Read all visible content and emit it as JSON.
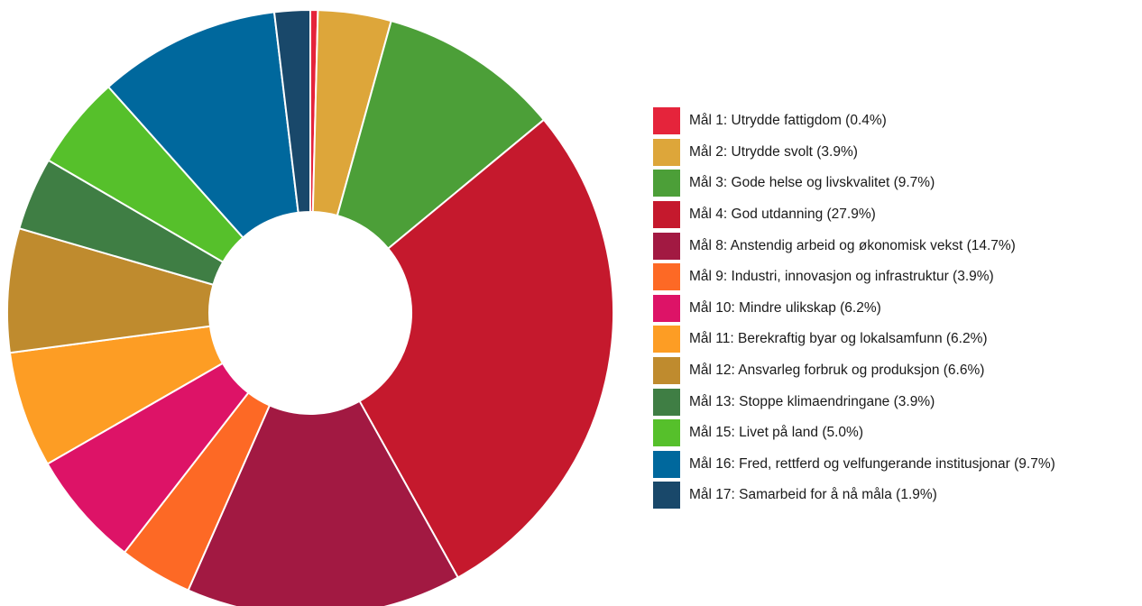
{
  "chart_data": {
    "type": "pie",
    "title": "",
    "legend_position": "right",
    "slices": [
      {
        "label": "Mål 1: Utrydde fattigdom (0.4%)",
        "value": 0.4,
        "color": "#e5243b"
      },
      {
        "label": "Mål 2: Utrydde svolt (3.9%)",
        "value": 3.9,
        "color": "#dda63a"
      },
      {
        "label": "Mål 3: Gode helse og livskvalitet (9.7%)",
        "value": 9.7,
        "color": "#4c9f38"
      },
      {
        "label": "Mål 4: God utdanning (27.9%)",
        "value": 27.9,
        "color": "#c5192d"
      },
      {
        "label": "Mål 8: Anstendig arbeid og økonomisk vekst (14.7%)",
        "value": 14.7,
        "color": "#a21942"
      },
      {
        "label": "Mål 9: Industri, innovasjon og infrastruktur (3.9%)",
        "value": 3.9,
        "color": "#fd6925"
      },
      {
        "label": "Mål 10: Mindre ulikskap (6.2%)",
        "value": 6.2,
        "color": "#dd1367"
      },
      {
        "label": "Mål 11: Berekraftig byar og lokalsamfunn (6.2%)",
        "value": 6.2,
        "color": "#fd9d24"
      },
      {
        "label": "Mål 12: Ansvarleg forbruk og produksjon (6.6%)",
        "value": 6.6,
        "color": "#bf8b2e"
      },
      {
        "label": "Mål 13: Stoppe klimaendringane (3.9%)",
        "value": 3.9,
        "color": "#3f7e44"
      },
      {
        "label": "Mål 15: Livet på land (5.0%)",
        "value": 5.0,
        "color": "#56c02b"
      },
      {
        "label": "Mål 16: Fred, rettferd og velfungerande institusjonar (9.7%)",
        "value": 9.7,
        "color": "#00689d"
      },
      {
        "label": "Mål 17: Samarbeid for å nå måla (1.9%)",
        "value": 1.9,
        "color": "#19486a"
      }
    ]
  }
}
